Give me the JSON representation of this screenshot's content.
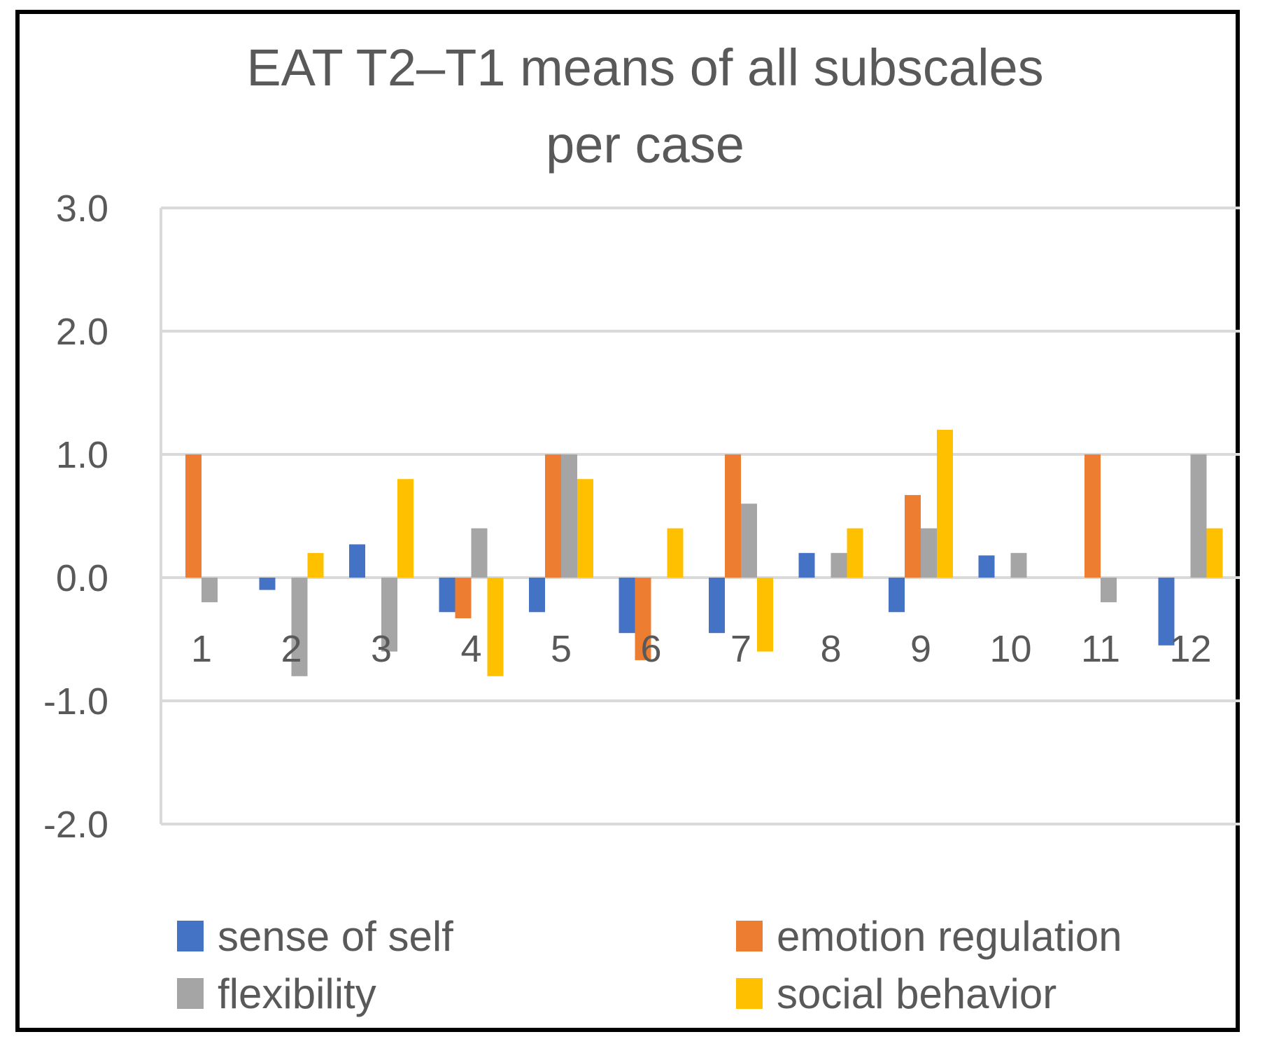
{
  "chart_data": {
    "type": "bar",
    "title": "EAT T2–T1 means of all subscales per case",
    "title_lines": [
      "EAT T2–T1 means of all subscales",
      "per case"
    ],
    "xlabel": "",
    "ylabel": "",
    "ylim": [
      -2.0,
      3.0
    ],
    "yticks": [
      3.0,
      2.0,
      1.0,
      0.0,
      -1.0,
      -2.0
    ],
    "ytick_labels": [
      "3.0",
      "2.0",
      "1.0",
      "0.0",
      "-1.0",
      "-2.0"
    ],
    "grid": true,
    "legend_position": "bottom",
    "categories": [
      "1",
      "2",
      "3",
      "4",
      "5",
      "6",
      "7",
      "8",
      "9",
      "10",
      "11",
      "12"
    ],
    "series": [
      {
        "name": "sense of self",
        "color": "#4472C4",
        "values": [
          0,
          -0.1,
          0.27,
          -0.28,
          -0.28,
          -0.45,
          -0.45,
          0.2,
          -0.28,
          0.18,
          0,
          -0.55
        ]
      },
      {
        "name": "emotion regulation",
        "color": "#ED7D31",
        "values": [
          1.0,
          0,
          0,
          -0.33,
          1.0,
          -0.67,
          1.0,
          0,
          0.67,
          0,
          1.0,
          0
        ]
      },
      {
        "name": "flexibility",
        "color": "#A5A5A5",
        "values": [
          -0.2,
          -0.8,
          -0.6,
          0.4,
          1.0,
          0,
          0.6,
          0.2,
          0.4,
          0.2,
          -0.2,
          1.0
        ]
      },
      {
        "name": "social behavior",
        "color": "#FFC000",
        "values": [
          0,
          0.2,
          0.8,
          -0.8,
          0.8,
          0.4,
          -0.6,
          0.4,
          1.2,
          0,
          0,
          0.4
        ]
      }
    ]
  }
}
